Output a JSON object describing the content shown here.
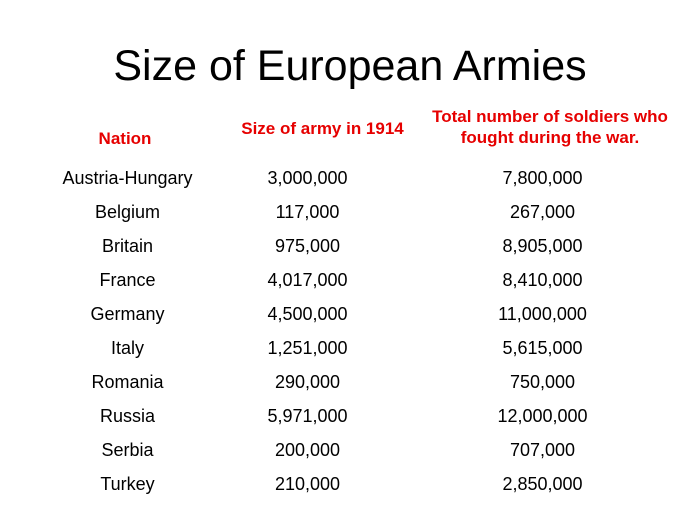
{
  "title": "Size of European Armies",
  "headers": {
    "nation": "Nation",
    "size_1914": "Size of army in 1914",
    "total_fought": "Total number of soldiers who fought during the war."
  },
  "rows": [
    {
      "nation": "Austria-Hungary",
      "size_1914": "3,000,000",
      "total_fought": "7,800,000"
    },
    {
      "nation": "Belgium",
      "size_1914": "117,000",
      "total_fought": "267,000"
    },
    {
      "nation": "Britain",
      "size_1914": "975,000",
      "total_fought": "8,905,000"
    },
    {
      "nation": "France",
      "size_1914": "4,017,000",
      "total_fought": "8,410,000"
    },
    {
      "nation": "Germany",
      "size_1914": "4,500,000",
      "total_fought": "11,000,000"
    },
    {
      "nation": "Italy",
      "size_1914": "1,251,000",
      "total_fought": "5,615,000"
    },
    {
      "nation": "Romania",
      "size_1914": "290,000",
      "total_fought": "750,000"
    },
    {
      "nation": "Russia",
      "size_1914": "5,971,000",
      "total_fought": "12,000,000"
    },
    {
      "nation": "Serbia",
      "size_1914": "200,000",
      "total_fought": "707,000"
    },
    {
      "nation": "Turkey",
      "size_1914": "210,000",
      "total_fought": "2,850,000"
    }
  ],
  "colors": {
    "header_text": "#e60000",
    "body_text": "#000000",
    "background": "#ffffff"
  }
}
